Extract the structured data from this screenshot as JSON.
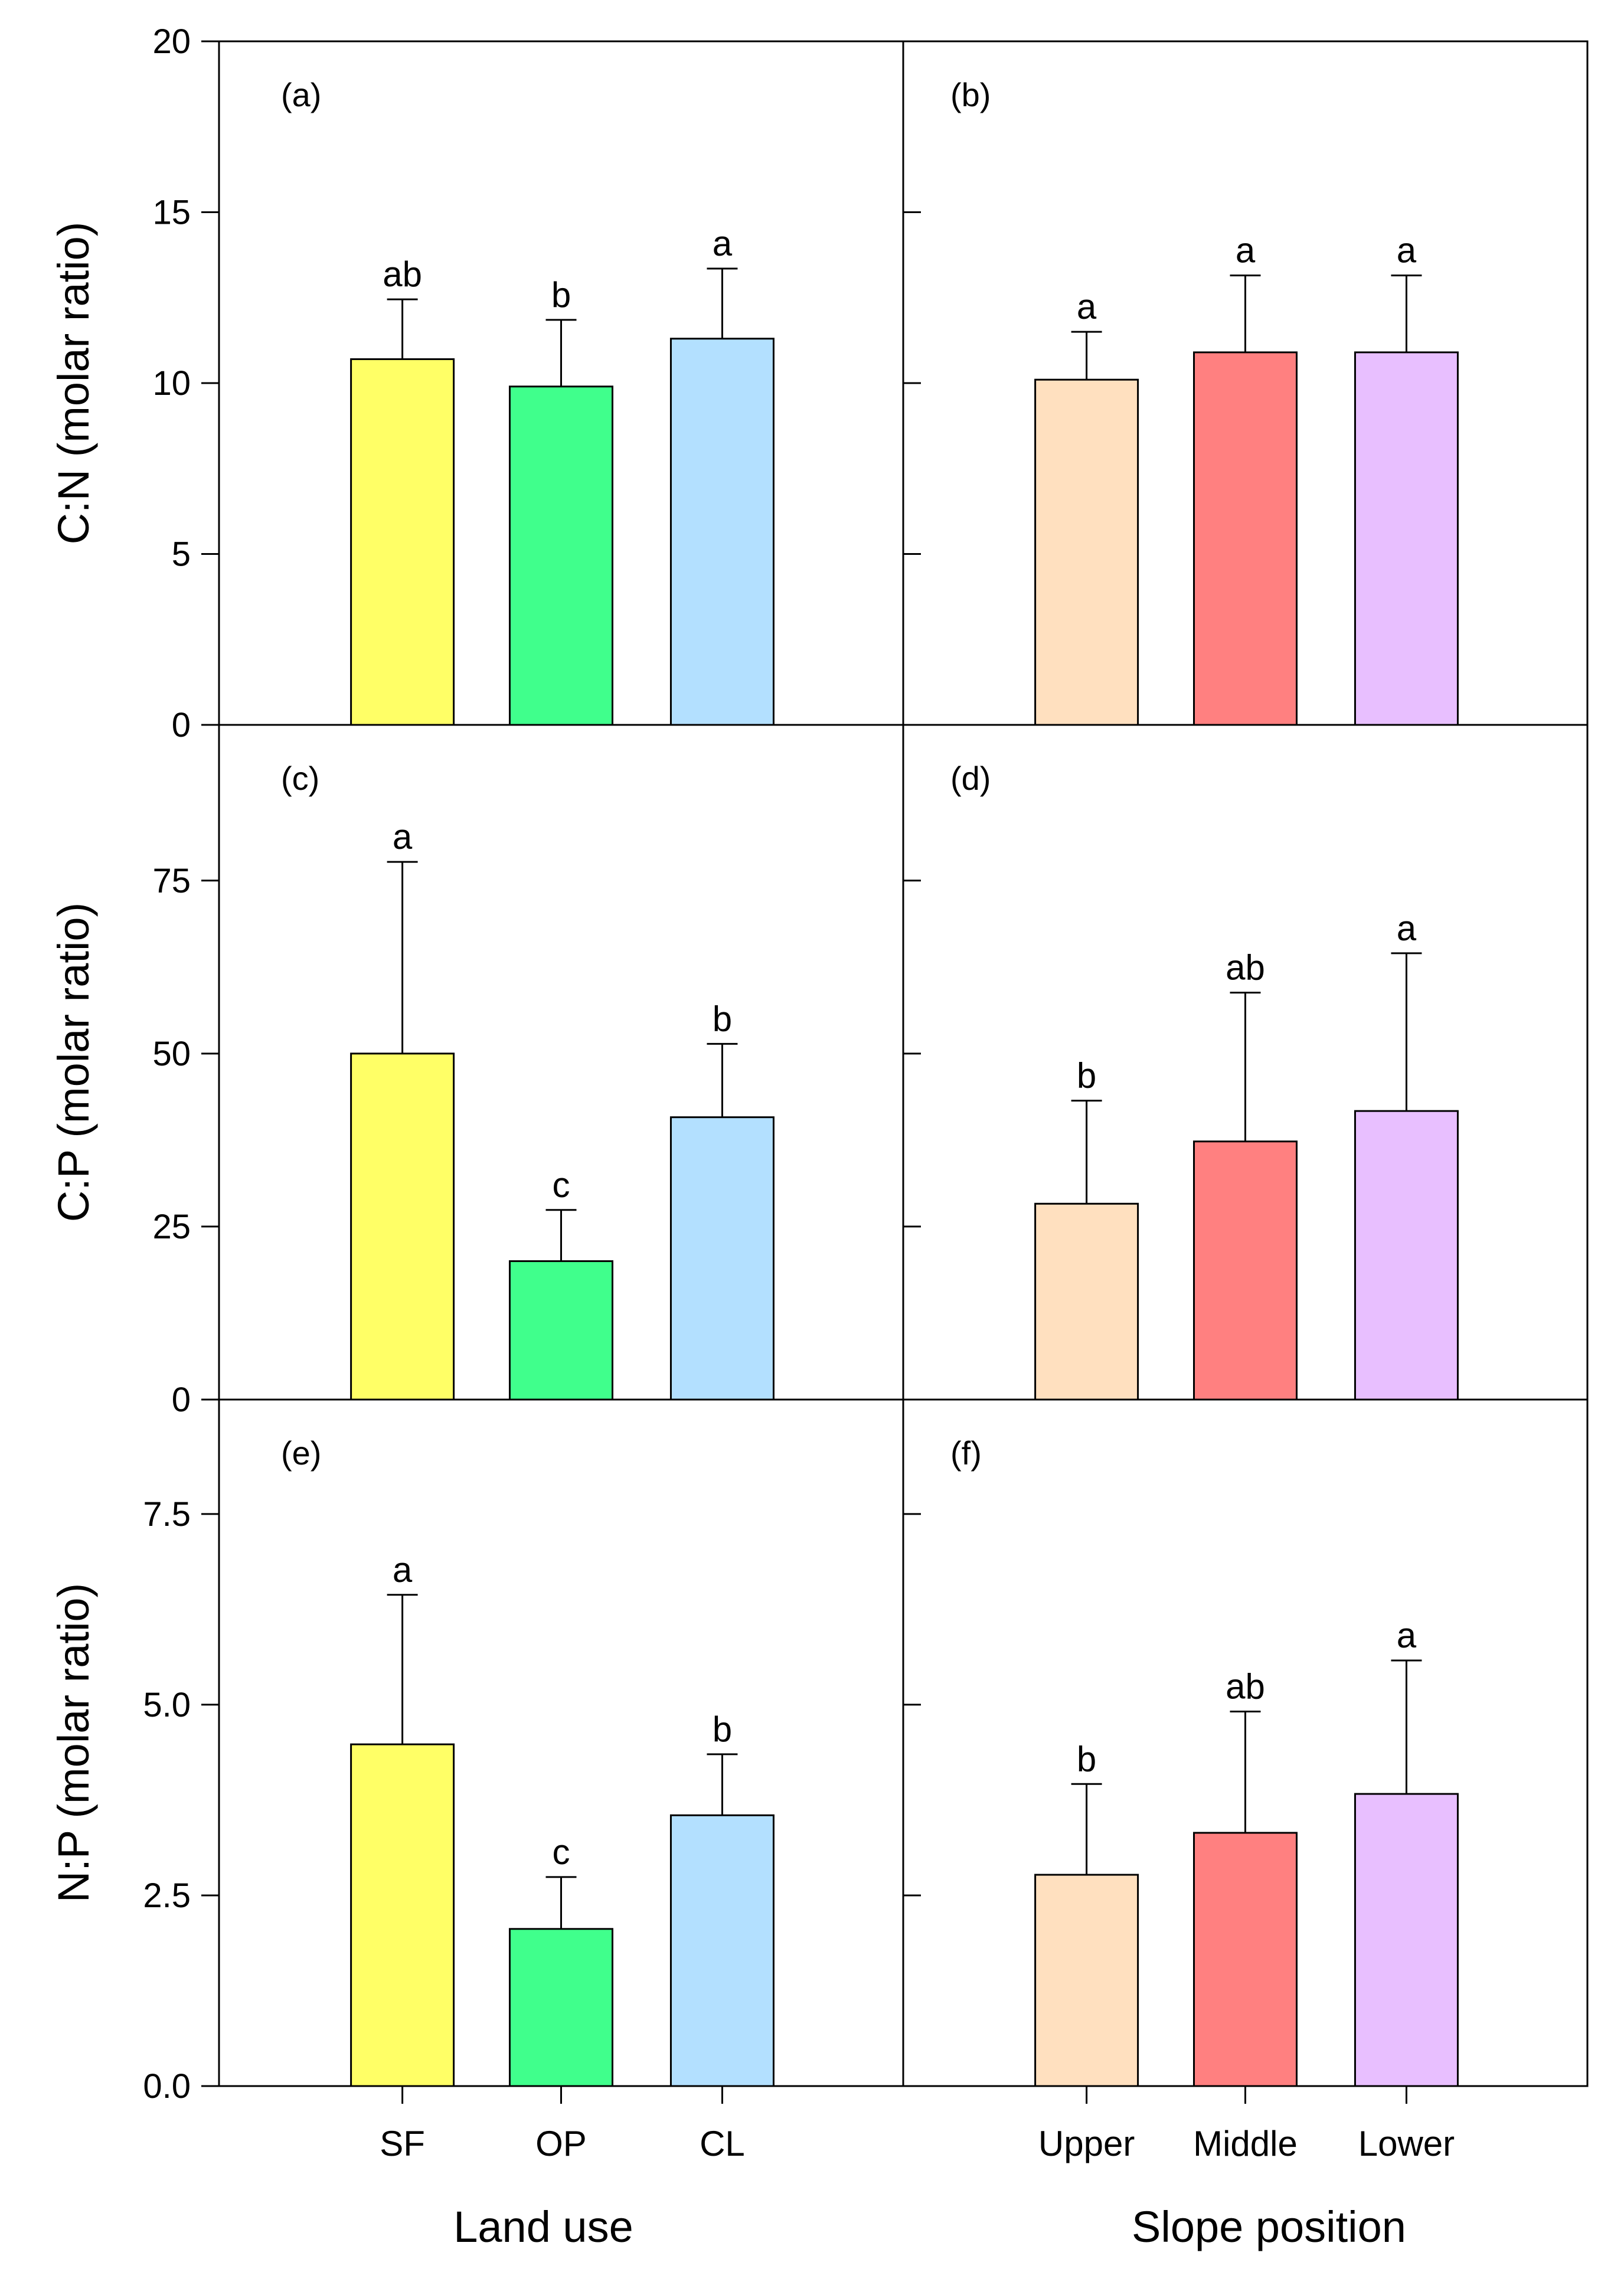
{
  "chart_data": [
    {
      "panel": "(a)",
      "type": "bar",
      "title": "",
      "categories": [
        "SF",
        "OP",
        "CL"
      ],
      "values": [
        10.7,
        9.9,
        11.3
      ],
      "errors": [
        1.75,
        1.95,
        2.05
      ],
      "letters": [
        "ab",
        "b",
        "a"
      ],
      "colors": [
        "#FFFF66",
        "#40FF8C",
        "#B3E0FF"
      ],
      "ylabel": "C:N (molar ratio)",
      "xlabel": "",
      "ylim": [
        0,
        20
      ],
      "yticks": [
        "0",
        "5",
        "10",
        "15",
        "20"
      ],
      "grid": false
    },
    {
      "panel": "(b)",
      "type": "bar",
      "title": "",
      "categories": [
        "Upper",
        "Middle",
        "Lower"
      ],
      "values": [
        10.1,
        10.9,
        10.9
      ],
      "errors": [
        1.4,
        2.25,
        2.25
      ],
      "letters": [
        "a",
        "a",
        "a"
      ],
      "colors": [
        "#FFE0BF",
        "#FF8080",
        "#E8BFFF"
      ],
      "ylabel": "",
      "xlabel": "",
      "ylim": [
        0,
        20
      ],
      "yticks": [],
      "grid": false
    },
    {
      "panel": "(c)",
      "type": "bar",
      "title": "",
      "categories": [
        "SF",
        "OP",
        "CL"
      ],
      "values": [
        50,
        20,
        40.8
      ],
      "errors": [
        27.7,
        7.4,
        10.6
      ],
      "letters": [
        "a",
        "c",
        "b"
      ],
      "colors": [
        "#FFFF66",
        "#40FF8C",
        "#B3E0FF"
      ],
      "ylabel": "C:P (molar ratio)",
      "xlabel": "",
      "ylim": [
        0,
        97.5
      ],
      "yticks": [
        "0",
        "25",
        "50",
        "75"
      ],
      "grid": false
    },
    {
      "panel": "(d)",
      "type": "bar",
      "title": "",
      "categories": [
        "Upper",
        "Middle",
        "Lower"
      ],
      "values": [
        28.3,
        37.3,
        41.7
      ],
      "errors": [
        14.9,
        21.5,
        22.8
      ],
      "letters": [
        "b",
        "ab",
        "a"
      ],
      "colors": [
        "#FFE0BF",
        "#FF8080",
        "#E8BFFF"
      ],
      "ylabel": "",
      "xlabel": "",
      "ylim": [
        0,
        97.5
      ],
      "yticks": [],
      "grid": false
    },
    {
      "panel": "(e)",
      "type": "bar",
      "title": "",
      "categories": [
        "SF",
        "OP",
        "CL"
      ],
      "values": [
        4.48,
        2.06,
        3.55
      ],
      "errors": [
        1.96,
        0.68,
        0.8
      ],
      "letters": [
        "a",
        "c",
        "b"
      ],
      "colors": [
        "#FFFF66",
        "#40FF8C",
        "#B3E0FF"
      ],
      "ylabel": "N:P (molar ratio)",
      "xlabel": "Land use",
      "ylim": [
        0,
        9
      ],
      "yticks": [
        "0.0",
        "2.5",
        "5.0",
        "7.5"
      ],
      "grid": false
    },
    {
      "panel": "(f)",
      "type": "bar",
      "title": "",
      "categories": [
        "Upper",
        "Middle",
        "Lower"
      ],
      "values": [
        2.77,
        3.32,
        3.83
      ],
      "errors": [
        1.19,
        1.59,
        1.75
      ],
      "letters": [
        "b",
        "ab",
        "a"
      ],
      "colors": [
        "#FFE0BF",
        "#FF8080",
        "#E8BFFF"
      ],
      "ylabel": "",
      "xlabel": "Slope position",
      "ylim": [
        0,
        9
      ],
      "yticks": [],
      "grid": false
    }
  ]
}
